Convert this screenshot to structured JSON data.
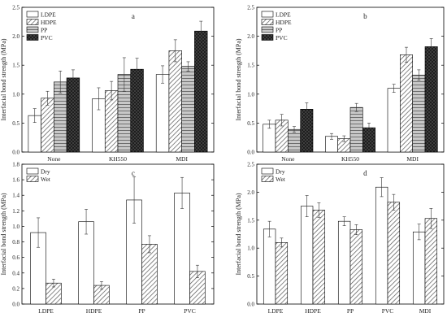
{
  "chart_data": [
    {
      "panel": "a",
      "type": "bar",
      "ylabel": "Interfacial bond strength (MPa)",
      "xlabel": "",
      "ylim": [
        0,
        2.5
      ],
      "yticks": [
        "0.0",
        "0.5",
        "1.0",
        "1.5",
        "2.0",
        "2.5"
      ],
      "categories": [
        "None",
        "KH550",
        "MDI"
      ],
      "legend_position": "top-left",
      "series": [
        {
          "name": "LDPE",
          "pattern": "white",
          "values": [
            0.63,
            0.92,
            1.34
          ],
          "errors": [
            0.12,
            0.19,
            0.15
          ]
        },
        {
          "name": "HDPE",
          "pattern": "diag",
          "values": [
            0.93,
            1.06,
            1.75
          ],
          "errors": [
            0.12,
            0.16,
            0.19
          ]
        },
        {
          "name": "PP",
          "pattern": "grid",
          "values": [
            1.21,
            1.34,
            1.48
          ],
          "errors": [
            0.19,
            0.29,
            0.08
          ]
        },
        {
          "name": "PVC",
          "pattern": "dark",
          "values": [
            1.28,
            1.43,
            2.09
          ],
          "errors": [
            0.14,
            0.19,
            0.17
          ]
        }
      ]
    },
    {
      "panel": "b",
      "type": "bar",
      "ylabel": "Interfacial bond strength (MPa)",
      "xlabel": "",
      "ylim": [
        0,
        2.5
      ],
      "yticks": [
        "0.0",
        "0.5",
        "1.0",
        "1.5",
        "2.0",
        "2.5"
      ],
      "categories": [
        "None",
        "KH550",
        "MDI"
      ],
      "legend_position": "top-left",
      "series": [
        {
          "name": "LDPE",
          "pattern": "white",
          "values": [
            0.48,
            0.27,
            1.1
          ],
          "errors": [
            0.07,
            0.05,
            0.07
          ]
        },
        {
          "name": "HDPE",
          "pattern": "diag",
          "values": [
            0.55,
            0.23,
            1.68
          ],
          "errors": [
            0.1,
            0.05,
            0.13
          ]
        },
        {
          "name": "PP",
          "pattern": "grid",
          "values": [
            0.39,
            0.77,
            1.33
          ],
          "errors": [
            0.05,
            0.07,
            0.09
          ]
        },
        {
          "name": "PVC",
          "pattern": "dark",
          "values": [
            0.74,
            0.42,
            1.82
          ],
          "errors": [
            0.11,
            0.08,
            0.14
          ]
        }
      ]
    },
    {
      "panel": "c",
      "type": "bar",
      "ylabel": "Interfacial bond strength (MPa)",
      "xlabel": "",
      "ylim": [
        0,
        1.8
      ],
      "yticks": [
        "0.0",
        "0.2",
        "0.4",
        "0.6",
        "0.8",
        "1.0",
        "1.2",
        "1.4",
        "1.6",
        "1.8"
      ],
      "categories": [
        "LDPE",
        "HDPE",
        "PP",
        "PVC"
      ],
      "legend_position": "top-left",
      "series": [
        {
          "name": "Dry",
          "pattern": "white",
          "values": [
            0.92,
            1.06,
            1.34,
            1.43
          ],
          "errors": [
            0.19,
            0.16,
            0.3,
            0.2
          ]
        },
        {
          "name": "Wet",
          "pattern": "diag",
          "values": [
            0.27,
            0.24,
            0.77,
            0.42
          ],
          "errors": [
            0.05,
            0.05,
            0.11,
            0.08
          ]
        }
      ]
    },
    {
      "panel": "d",
      "type": "bar",
      "ylabel": "Interfacial bond strength (MPa)",
      "xlabel": "",
      "ylim": [
        0,
        2.5
      ],
      "yticks": [
        "0.0",
        "0.5",
        "1.0",
        "1.5",
        "2.0",
        "2.5"
      ],
      "categories": [
        "LDPE",
        "HDPE",
        "PP",
        "PVC",
        "MDI"
      ],
      "legend_position": "top-left",
      "series": [
        {
          "name": "Dry",
          "pattern": "white",
          "values": [
            1.34,
            1.75,
            1.48,
            2.09,
            1.29
          ],
          "errors": [
            0.14,
            0.19,
            0.08,
            0.17,
            0.14
          ]
        },
        {
          "name": "Wet",
          "pattern": "diag",
          "values": [
            1.1,
            1.68,
            1.33,
            1.82,
            1.53
          ],
          "errors": [
            0.08,
            0.13,
            0.09,
            0.14,
            0.18
          ]
        }
      ]
    }
  ]
}
